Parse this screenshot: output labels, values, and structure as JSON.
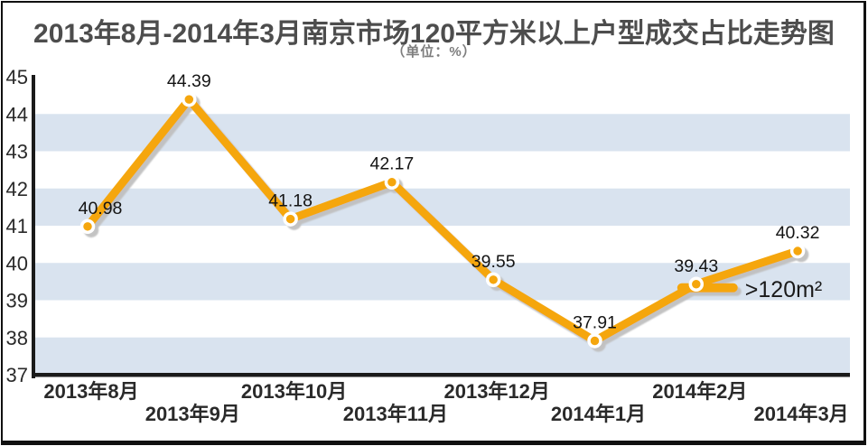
{
  "figure": {
    "frame_color": "#101010",
    "background": "#ffffff"
  },
  "chart_data": {
    "type": "line",
    "title": "2013年8月-2014年3月南京市场120平方米以上户型成交占比走势图",
    "subtitle": "（单位：%）",
    "categories": [
      "2013年8月",
      "2013年9月",
      "2013年10月",
      "2013年11月",
      "2013年12月",
      "2014年1月",
      "2014年2月",
      "2014年3月"
    ],
    "series": [
      {
        "name": ">120m²",
        "values": [
          40.98,
          44.39,
          41.18,
          42.17,
          39.55,
          37.91,
          39.43,
          40.32
        ]
      }
    ],
    "data_labels": [
      "40.98",
      "44.39",
      "41.18",
      "42.17",
      "39.55",
      "37.91",
      "39.43",
      "40.32"
    ],
    "ylim": [
      37,
      45
    ],
    "yticks": [
      45,
      44,
      43,
      42,
      41,
      40,
      39,
      38,
      37
    ],
    "grid": "alternating-horizontal-bands",
    "legend_position": "inline-annotation",
    "annotation": {
      "text": ">120m²",
      "attach_category": "2014年2月"
    },
    "colors": {
      "line": "#f5a60b",
      "marker_fill": "#f5a60b",
      "marker_ring": "#ffffff",
      "band": "#d9e3ef",
      "shadow": "#c0c0c0",
      "axis": "#1a1a1a",
      "tick_label": "#2a2a2a",
      "data_label": "#141414",
      "annotation_text": "#1a1a1a"
    }
  }
}
